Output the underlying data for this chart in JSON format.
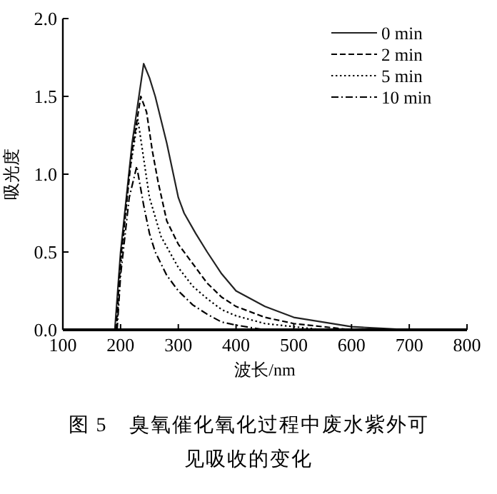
{
  "chart_data": {
    "type": "line",
    "title": "图 5　臭氧催化氧化过程中废水紫外可见吸收的变化",
    "xlabel": "波长/nm",
    "ylabel": "吸光度",
    "xlim": [
      100,
      800
    ],
    "xticks": [
      100,
      200,
      300,
      400,
      500,
      600,
      700,
      800
    ],
    "ylim": [
      0,
      2
    ],
    "yticks": [
      {
        "value": 0,
        "label": "0.0"
      },
      {
        "value": 0.5,
        "label": "0.5"
      },
      {
        "value": 1,
        "label": "1.0"
      },
      {
        "value": 1.5,
        "label": "1.5"
      },
      {
        "value": 2,
        "label": "2.0"
      }
    ],
    "legend": "top right",
    "grid": false,
    "marker": "none",
    "series": [
      {
        "name": "0 min",
        "color": "#222222",
        "line_style": "solid",
        "x": [
          190,
          200,
          220,
          240,
          250,
          260,
          280,
          300,
          310,
          330,
          350,
          375,
          400,
          450,
          500,
          550,
          600,
          650,
          700
        ],
        "values": [
          0,
          0.5,
          1.2,
          1.71,
          1.62,
          1.5,
          1.2,
          0.85,
          0.75,
          0.62,
          0.5,
          0.36,
          0.25,
          0.15,
          0.08,
          0.05,
          0.02,
          0.01,
          0
        ]
      },
      {
        "name": "2 min",
        "color": "#000000",
        "line_style": "dashed",
        "x": [
          192,
          200,
          220,
          235,
          245,
          255,
          265,
          280,
          300,
          330,
          350,
          375,
          400,
          450,
          500,
          550,
          600
        ],
        "values": [
          0,
          0.45,
          1.15,
          1.5,
          1.4,
          1.15,
          0.95,
          0.7,
          0.55,
          0.4,
          0.3,
          0.21,
          0.15,
          0.08,
          0.04,
          0.02,
          0
        ]
      },
      {
        "name": "5 min",
        "color": "#000000",
        "line_style": "dotted",
        "x": [
          193,
          200,
          215,
          230,
          240,
          250,
          270,
          300,
          325,
          350,
          375,
          400,
          450,
          500,
          550
        ],
        "values": [
          0,
          0.4,
          1.0,
          1.35,
          1.1,
          0.85,
          0.6,
          0.4,
          0.28,
          0.2,
          0.13,
          0.09,
          0.04,
          0.02,
          0
        ]
      },
      {
        "name": "10 min",
        "color": "#000000",
        "line_style": "dashdot",
        "x": [
          194,
          200,
          215,
          228,
          240,
          250,
          260,
          280,
          300,
          325,
          350,
          375,
          400,
          450
        ],
        "values": [
          0,
          0.35,
          0.85,
          1.05,
          0.8,
          0.62,
          0.5,
          0.35,
          0.25,
          0.16,
          0.1,
          0.05,
          0.03,
          0
        ]
      }
    ]
  }
}
